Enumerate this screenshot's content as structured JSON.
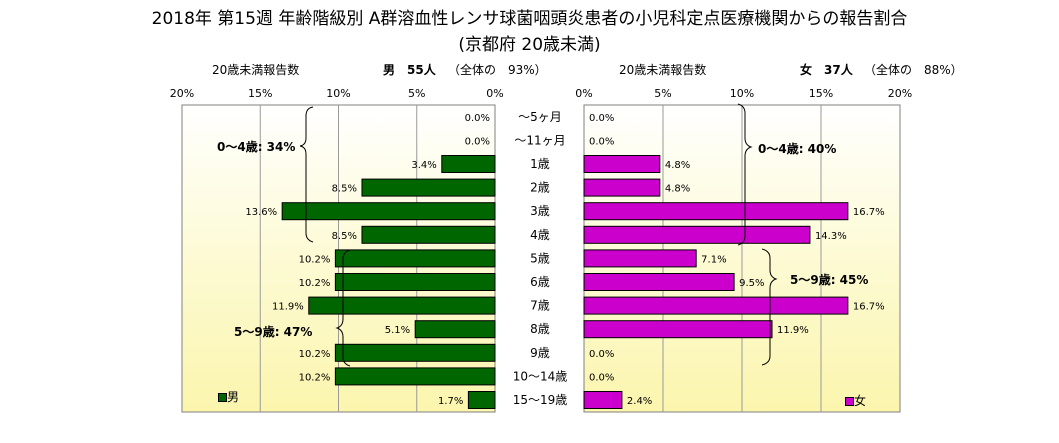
{
  "title": "2018年 第15週 年齢階級別 A群溶血性レンサ球菌咽頭炎患者の小児科定点医療機関からの報告割合",
  "subtitle": "(京都府 20歳未満)",
  "chart_data": {
    "type": "bar",
    "orientation": "horizontal-butterfly",
    "categories": [
      "～5ヶ月",
      "～11ヶ月",
      "1歳",
      "2歳",
      "3歳",
      "4歳",
      "5歳",
      "6歳",
      "7歳",
      "8歳",
      "9歳",
      "10～14歳",
      "15～19歳"
    ],
    "left_panel": {
      "xlabel": "20歳未満報告数",
      "header": "男　55人",
      "share": "（全体の　93%）",
      "xticks": [
        "20%",
        "15%",
        "10%",
        "5%",
        "0%"
      ],
      "xlim": [
        0,
        20
      ],
      "series": [
        {
          "name": "男",
          "color": "#006600",
          "values": [
            0.0,
            0.0,
            3.4,
            8.5,
            13.6,
            8.5,
            10.2,
            10.2,
            11.9,
            5.1,
            10.2,
            10.2,
            1.7
          ]
        }
      ],
      "labels": [
        "0.0%",
        "0.0%",
        "3.4%",
        "8.5%",
        "13.6%",
        "8.5%",
        "10.2%",
        "10.2%",
        "11.9%",
        "5.1%",
        "10.2%",
        "10.2%",
        "1.7%"
      ],
      "annotations": [
        "0～4歳: 34%",
        "5～9歳: 47%"
      ]
    },
    "right_panel": {
      "xlabel": "20歳未満報告数",
      "header": "女　37人",
      "share": "（全体の　88%）",
      "xticks": [
        "0%",
        "5%",
        "10%",
        "15%",
        "20%"
      ],
      "xlim": [
        0,
        20
      ],
      "series": [
        {
          "name": "女",
          "color": "#CC00CC",
          "values": [
            0.0,
            0.0,
            4.8,
            4.8,
            16.7,
            14.3,
            7.1,
            9.5,
            16.7,
            11.9,
            0.0,
            0.0,
            2.4
          ]
        }
      ],
      "labels": [
        "0.0%",
        "0.0%",
        "4.8%",
        "4.8%",
        "16.7%",
        "14.3%",
        "7.1%",
        "9.5%",
        "16.7%",
        "11.9%",
        "0.0%",
        "0.0%",
        "2.4%"
      ],
      "annotations": [
        "0～4歳: 40%",
        "5～9歳: 45%"
      ]
    },
    "legend": [
      {
        "name": "男",
        "color": "#006600"
      },
      {
        "name": "女",
        "color": "#CC00CC"
      }
    ],
    "grid": true,
    "background_gradient": [
      "#ffffff",
      "#fbf6b0"
    ]
  }
}
